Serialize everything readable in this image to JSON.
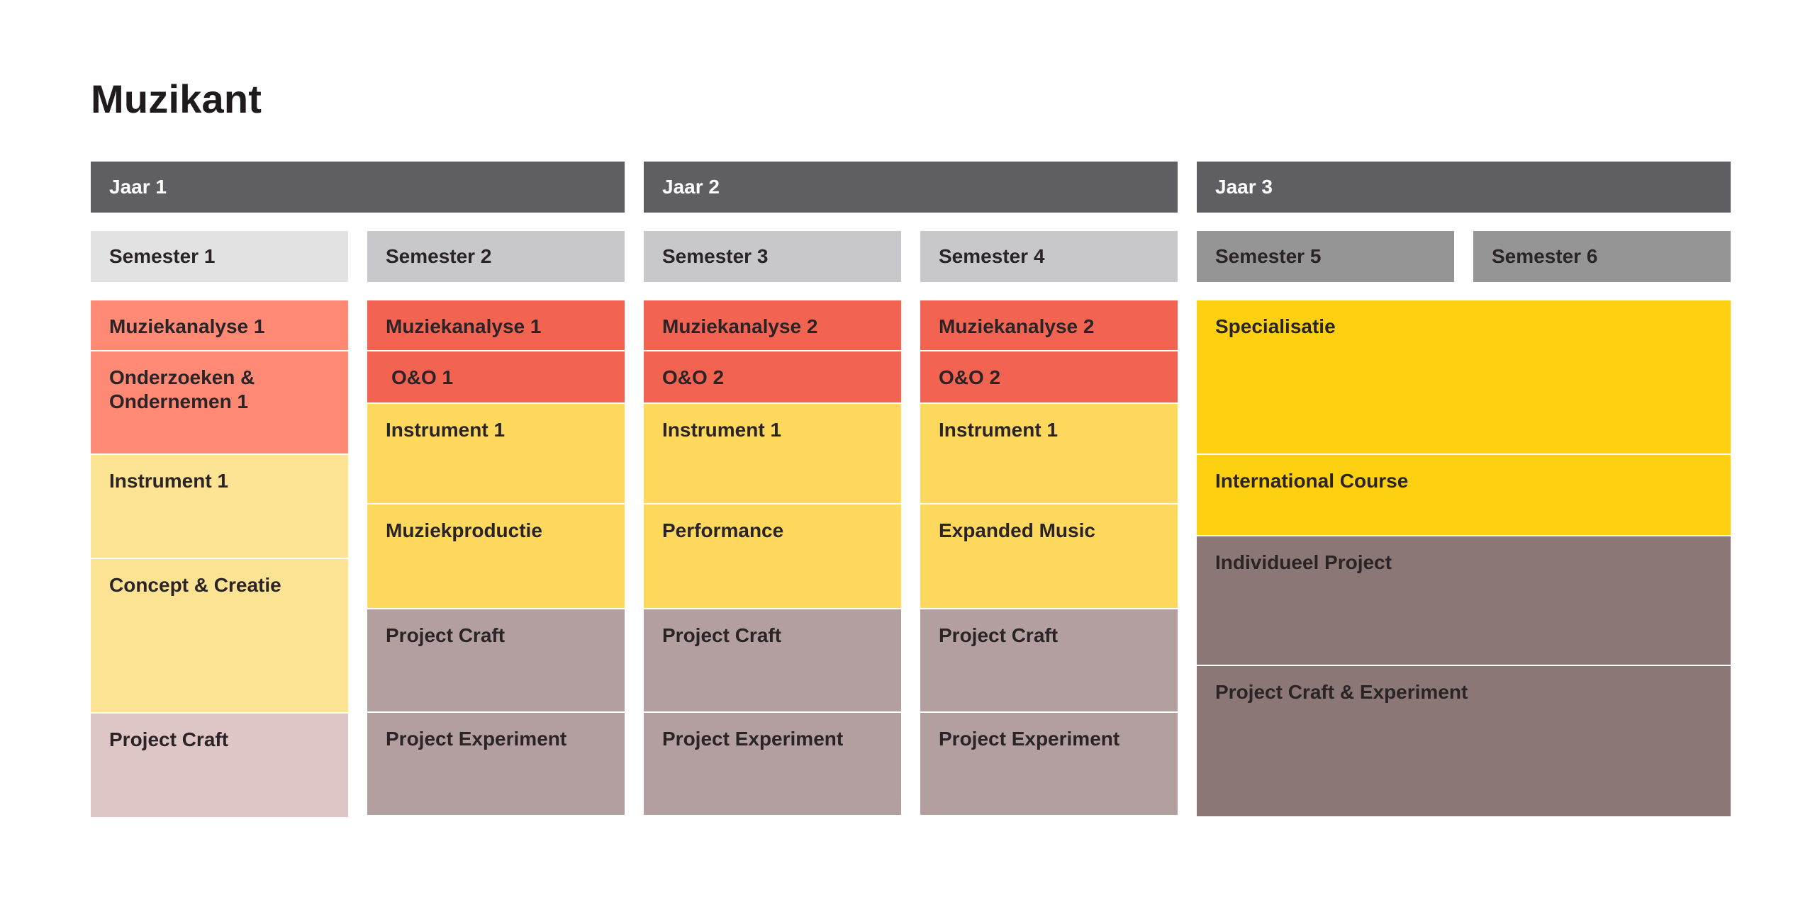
{
  "title": "Muzikant",
  "years": [
    {
      "label": "Jaar 1"
    },
    {
      "label": "Jaar 2"
    },
    {
      "label": "Jaar 3"
    }
  ],
  "semesters": [
    {
      "label": "Semester 1"
    },
    {
      "label": "Semester 2"
    },
    {
      "label": "Semester 3"
    },
    {
      "label": "Semester 4"
    },
    {
      "label": "Semester 5"
    },
    {
      "label": "Semester 6"
    }
  ],
  "courses": {
    "s1": [
      {
        "label": "Muziekanalyse 1"
      },
      {
        "label": "Onderzoeken & Ondernemen 1"
      },
      {
        "label": "Instrument 1"
      },
      {
        "label": "Concept & Creatie"
      },
      {
        "label": "Project Craft"
      }
    ],
    "s2": [
      {
        "label": "Muziekanalyse 1"
      },
      {
        "label": "O&O  1"
      },
      {
        "label": "Instrument 1"
      },
      {
        "label": "Muziekproductie"
      },
      {
        "label": "Project Craft"
      },
      {
        "label": "Project Experiment"
      }
    ],
    "s3": [
      {
        "label": "Muziekanalyse 2"
      },
      {
        "label": "O&O 2"
      },
      {
        "label": "Instrument 1"
      },
      {
        "label": "Performance"
      },
      {
        "label": "Project Craft"
      },
      {
        "label": "Project Experiment"
      }
    ],
    "s4": [
      {
        "label": "Muziekanalyse 2"
      },
      {
        "label": "O&O 2"
      },
      {
        "label": "Instrument 1"
      },
      {
        "label": "Expanded Music"
      },
      {
        "label": "Project Craft"
      },
      {
        "label": "Project Experiment"
      }
    ],
    "s56": [
      {
        "label": "Specialisatie"
      },
      {
        "label": "International Course"
      },
      {
        "label": "Individueel Project"
      },
      {
        "label": "Project Craft & Experiment"
      }
    ]
  },
  "colors": {
    "year_bar": "#5f5f63",
    "analysis_light": "#fe8a76",
    "analysis": "#f26451",
    "instrument_light": "#fde394",
    "instrument": "#fed95e",
    "specialisation": "#fdd112",
    "project_light": "#dec6c7",
    "project": "#b39f9f",
    "project_dark": "#8c7777"
  }
}
